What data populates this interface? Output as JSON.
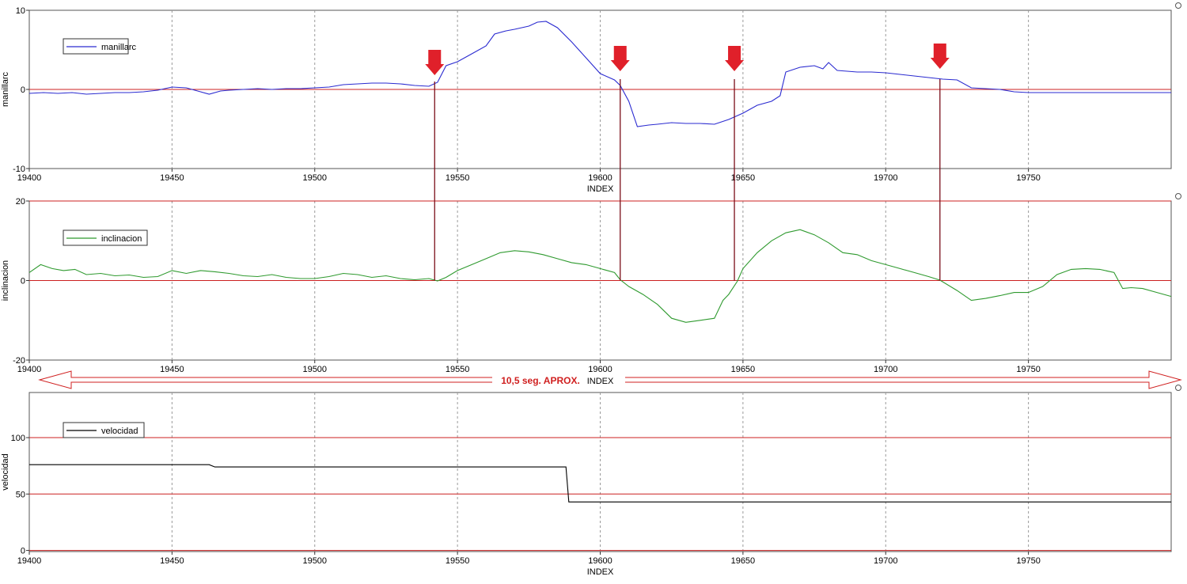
{
  "chart_data": [
    {
      "type": "line",
      "xlabel": "INDEX",
      "ylabel": "manillarc",
      "xlim": [
        19400,
        19800
      ],
      "ylim": [
        -10,
        10
      ],
      "yticks": [
        -10,
        0,
        10
      ],
      "xticks": [
        19400,
        19450,
        19500,
        19550,
        19600,
        19650,
        19700,
        19750
      ],
      "grid": "vertical-dashed",
      "legend_position": "top-left",
      "reference_lines": [
        0
      ],
      "series": [
        {
          "name": "manillarc",
          "color": "#2a2ad0",
          "points": [
            [
              19400,
              -0.5
            ],
            [
              19405,
              -0.4
            ],
            [
              19410,
              -0.5
            ],
            [
              19415,
              -0.4
            ],
            [
              19420,
              -0.6
            ],
            [
              19425,
              -0.5
            ],
            [
              19430,
              -0.4
            ],
            [
              19435,
              -0.4
            ],
            [
              19440,
              -0.3
            ],
            [
              19445,
              -0.1
            ],
            [
              19450,
              0.3
            ],
            [
              19455,
              0.2
            ],
            [
              19460,
              -0.3
            ],
            [
              19463,
              -0.6
            ],
            [
              19467,
              -0.2
            ],
            [
              19470,
              -0.1
            ],
            [
              19475,
              0.0
            ],
            [
              19480,
              0.1
            ],
            [
              19485,
              0.0
            ],
            [
              19490,
              0.1
            ],
            [
              19495,
              0.1
            ],
            [
              19500,
              0.2
            ],
            [
              19505,
              0.3
            ],
            [
              19510,
              0.6
            ],
            [
              19515,
              0.7
            ],
            [
              19520,
              0.8
            ],
            [
              19525,
              0.8
            ],
            [
              19530,
              0.7
            ],
            [
              19535,
              0.5
            ],
            [
              19540,
              0.4
            ],
            [
              19543,
              0.9
            ],
            [
              19546,
              3.0
            ],
            [
              19550,
              3.5
            ],
            [
              19555,
              4.5
            ],
            [
              19560,
              5.5
            ],
            [
              19563,
              7.0
            ],
            [
              19567,
              7.4
            ],
            [
              19570,
              7.6
            ],
            [
              19575,
              8.0
            ],
            [
              19578,
              8.5
            ],
            [
              19581,
              8.6
            ],
            [
              19585,
              7.8
            ],
            [
              19590,
              6.0
            ],
            [
              19595,
              4.0
            ],
            [
              19600,
              2.0
            ],
            [
              19605,
              1.2
            ],
            [
              19607,
              0.5
            ],
            [
              19610,
              -1.5
            ],
            [
              19613,
              -4.7
            ],
            [
              19617,
              -4.5
            ],
            [
              19620,
              -4.4
            ],
            [
              19625,
              -4.2
            ],
            [
              19630,
              -4.3
            ],
            [
              19635,
              -4.3
            ],
            [
              19640,
              -4.4
            ],
            [
              19645,
              -3.8
            ],
            [
              19650,
              -3.0
            ],
            [
              19655,
              -2.0
            ],
            [
              19660,
              -1.5
            ],
            [
              19663,
              -0.8
            ],
            [
              19665,
              2.2
            ],
            [
              19670,
              2.8
            ],
            [
              19675,
              3.0
            ],
            [
              19678,
              2.6
            ],
            [
              19680,
              3.4
            ],
            [
              19683,
              2.4
            ],
            [
              19690,
              2.2
            ],
            [
              19695,
              2.2
            ],
            [
              19700,
              2.1
            ],
            [
              19705,
              1.9
            ],
            [
              19710,
              1.7
            ],
            [
              19715,
              1.5
            ],
            [
              19720,
              1.3
            ],
            [
              19725,
              1.2
            ],
            [
              19730,
              0.2
            ],
            [
              19735,
              0.1
            ],
            [
              19740,
              0.0
            ],
            [
              19745,
              -0.3
            ],
            [
              19750,
              -0.4
            ],
            [
              19760,
              -0.4
            ],
            [
              19770,
              -0.4
            ],
            [
              19780,
              -0.4
            ],
            [
              19790,
              -0.4
            ],
            [
              19800,
              -0.4
            ]
          ]
        }
      ]
    },
    {
      "type": "line",
      "xlabel": "INDEX",
      "ylabel": "inclinacion",
      "xlim": [
        19400,
        19800
      ],
      "ylim": [
        -20,
        20
      ],
      "yticks": [
        -20,
        0,
        20
      ],
      "xticks": [
        19400,
        19450,
        19500,
        19550,
        19600,
        19650,
        19700,
        19750
      ],
      "grid": "vertical-dashed",
      "legend_position": "top-left",
      "reference_lines": [
        0,
        20
      ],
      "series": [
        {
          "name": "inclinacion",
          "color": "#2f9a2f",
          "points": [
            [
              19400,
              2.0
            ],
            [
              19404,
              4.0
            ],
            [
              19408,
              3.0
            ],
            [
              19412,
              2.5
            ],
            [
              19416,
              2.8
            ],
            [
              19420,
              1.5
            ],
            [
              19425,
              1.8
            ],
            [
              19430,
              1.2
            ],
            [
              19435,
              1.4
            ],
            [
              19440,
              0.8
            ],
            [
              19445,
              1.0
            ],
            [
              19450,
              2.5
            ],
            [
              19455,
              1.8
            ],
            [
              19460,
              2.5
            ],
            [
              19465,
              2.2
            ],
            [
              19470,
              1.8
            ],
            [
              19475,
              1.2
            ],
            [
              19480,
              1.0
            ],
            [
              19485,
              1.5
            ],
            [
              19490,
              0.8
            ],
            [
              19495,
              0.5
            ],
            [
              19500,
              0.5
            ],
            [
              19505,
              1.0
            ],
            [
              19510,
              1.8
            ],
            [
              19515,
              1.5
            ],
            [
              19520,
              0.8
            ],
            [
              19525,
              1.2
            ],
            [
              19530,
              0.5
            ],
            [
              19535,
              0.2
            ],
            [
              19540,
              0.5
            ],
            [
              19543,
              -0.1
            ],
            [
              19546,
              0.8
            ],
            [
              19550,
              2.5
            ],
            [
              19555,
              4.0
            ],
            [
              19560,
              5.5
            ],
            [
              19565,
              7.0
            ],
            [
              19570,
              7.5
            ],
            [
              19575,
              7.2
            ],
            [
              19580,
              6.5
            ],
            [
              19585,
              5.5
            ],
            [
              19590,
              4.5
            ],
            [
              19595,
              4.0
            ],
            [
              19600,
              3.0
            ],
            [
              19605,
              2.0
            ],
            [
              19607,
              0.2
            ],
            [
              19610,
              -1.5
            ],
            [
              19615,
              -3.5
            ],
            [
              19620,
              -6.0
            ],
            [
              19625,
              -9.5
            ],
            [
              19630,
              -10.5
            ],
            [
              19635,
              -10.0
            ],
            [
              19640,
              -9.5
            ],
            [
              19643,
              -5.0
            ],
            [
              19645,
              -3.5
            ],
            [
              19648,
              -0.2
            ],
            [
              19650,
              3.0
            ],
            [
              19655,
              7.0
            ],
            [
              19660,
              10.0
            ],
            [
              19665,
              12.0
            ],
            [
              19670,
              12.8
            ],
            [
              19675,
              11.5
            ],
            [
              19680,
              9.5
            ],
            [
              19685,
              7.0
            ],
            [
              19690,
              6.5
            ],
            [
              19695,
              5.0
            ],
            [
              19700,
              4.0
            ],
            [
              19705,
              3.0
            ],
            [
              19710,
              2.0
            ],
            [
              19715,
              1.0
            ],
            [
              19719,
              0.1
            ],
            [
              19725,
              -2.5
            ],
            [
              19730,
              -5.0
            ],
            [
              19735,
              -4.5
            ],
            [
              19740,
              -3.8
            ],
            [
              19745,
              -3.0
            ],
            [
              19750,
              -3.0
            ],
            [
              19755,
              -1.5
            ],
            [
              19760,
              1.5
            ],
            [
              19765,
              2.8
            ],
            [
              19770,
              3.0
            ],
            [
              19775,
              2.8
            ],
            [
              19780,
              2.0
            ],
            [
              19783,
              -2.0
            ],
            [
              19786,
              -1.8
            ],
            [
              19790,
              -2.0
            ],
            [
              19795,
              -3.0
            ],
            [
              19800,
              -4.0
            ]
          ]
        }
      ]
    },
    {
      "type": "line",
      "xlabel": "INDEX",
      "ylabel": "velocidad",
      "xlim": [
        19400,
        19800
      ],
      "ylim": [
        -1,
        140
      ],
      "yticks": [
        0,
        50,
        100
      ],
      "xticks": [
        19400,
        19450,
        19500,
        19550,
        19600,
        19650,
        19700,
        19750
      ],
      "grid": "vertical-dashed",
      "legend_position": "top-left",
      "reference_lines": [
        0,
        50,
        100
      ],
      "series": [
        {
          "name": "velocidad",
          "color": "#000000",
          "step": true,
          "points": [
            [
              19400,
              76
            ],
            [
              19463,
              76
            ],
            [
              19465,
              74
            ],
            [
              19588,
              74
            ],
            [
              19589,
              43
            ],
            [
              19800,
              43
            ]
          ]
        }
      ]
    }
  ],
  "annotations": {
    "arrow_color": "#e0202a",
    "arrow_indices": [
      19542,
      19607,
      19647,
      19719
    ],
    "span_label": "10,5 seg. APROX."
  }
}
